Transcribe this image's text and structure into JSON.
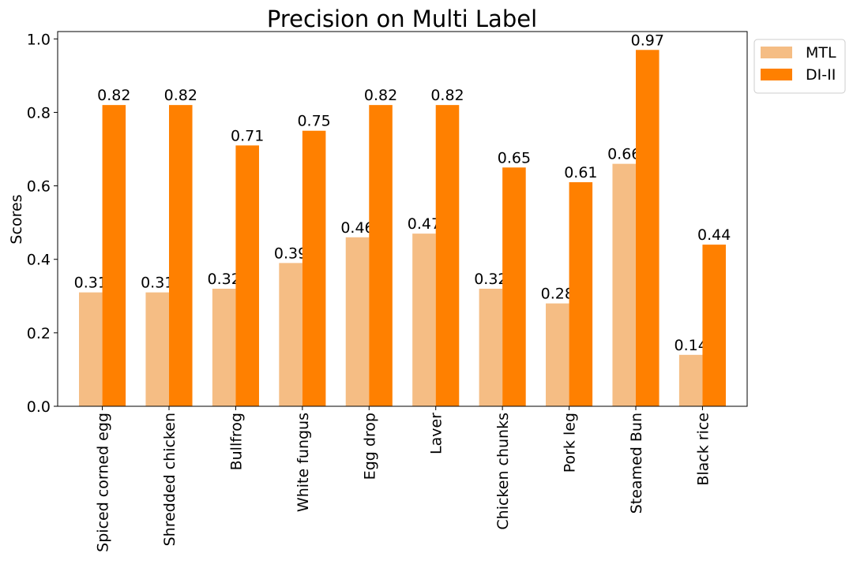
{
  "chart_data": {
    "type": "bar",
    "title": "Precision on Multi Label",
    "ylabel": "Scores",
    "xlabel": "",
    "ylim": [
      0,
      1.02
    ],
    "yticks": [
      "0.0",
      "0.2",
      "0.4",
      "0.6",
      "0.8",
      "1.0"
    ],
    "categories": [
      "Spiced corned egg",
      "Shredded chicken",
      "Bullfrog",
      "White fungus",
      "Egg drop",
      "Laver",
      "Chicken chunks",
      "Pork leg",
      "Steamed Bun",
      "Black rice"
    ],
    "series": [
      {
        "name": "MTL",
        "color": "#f5bd84",
        "values": [
          0.31,
          0.31,
          0.32,
          0.39,
          0.46,
          0.47,
          0.32,
          0.28,
          0.66,
          0.14
        ]
      },
      {
        "name": "DI-II",
        "color": "#ff8000",
        "values": [
          0.82,
          0.82,
          0.71,
          0.75,
          0.82,
          0.82,
          0.65,
          0.61,
          0.97,
          0.44
        ]
      }
    ],
    "data_labels": true,
    "grid": false,
    "legend": "outside-top-right"
  }
}
